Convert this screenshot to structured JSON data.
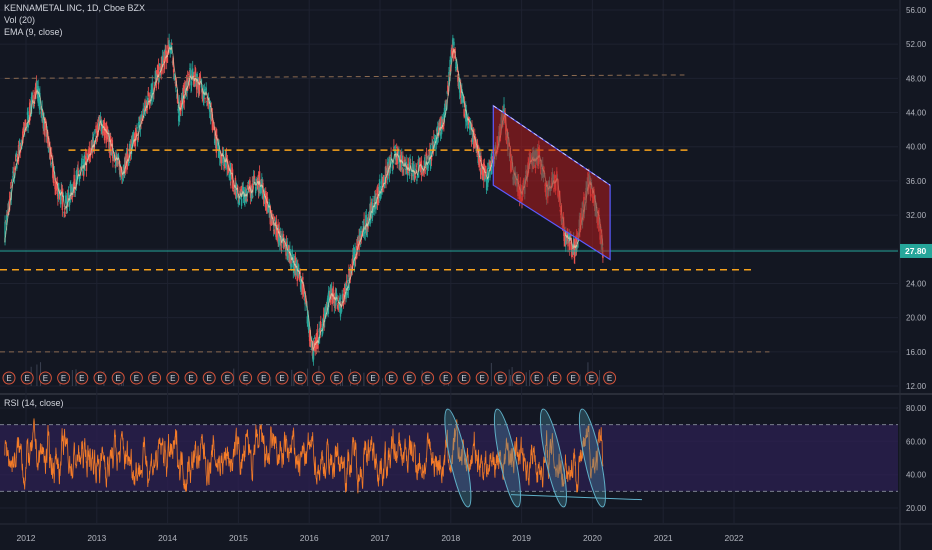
{
  "header": {
    "symbol_line": "KENNAMETAL INC, 1D, Cboe BZX",
    "vol_line": "Vol (20)",
    "ema_line": "EMA (9, close)"
  },
  "rsi_header": "RSI (14, close)",
  "colors": {
    "background": "#131722",
    "grid": "#1e2230",
    "candle_up": "#26a69a",
    "candle_down": "#ef5350",
    "ema": "#f0dcb4",
    "support": "#f7a21b",
    "channel_fill": "#b71c1c",
    "channel_edge": "#5b5bff",
    "rsi_line": "#f57c28",
    "rsi_band": "#2a1f4f",
    "price_tag": "#26a69a",
    "earnings_marker": "#d6533a"
  },
  "chart_data": [
    {
      "type": "candlestick",
      "title": "KENNAMETAL INC, 1D, Cboe BZX",
      "x_ticks": [
        "2012",
        "2013",
        "2014",
        "2015",
        "2016",
        "2017",
        "2018",
        "2019",
        "2020",
        "2021",
        "2022"
      ],
      "y_ticks": [
        "56.00",
        "52.00",
        "48.00",
        "44.00",
        "40.00",
        "36.00",
        "32.00",
        "28.00",
        "24.00",
        "20.00",
        "16.00",
        "12.00"
      ],
      "ylim": [
        12,
        57
      ],
      "last_price": "27.80",
      "price_path": [
        {
          "x": 2011.7,
          "y": 30
        },
        {
          "x": 2011.85,
          "y": 38
        },
        {
          "x": 2012.05,
          "y": 44
        },
        {
          "x": 2012.15,
          "y": 47
        },
        {
          "x": 2012.3,
          "y": 41
        },
        {
          "x": 2012.4,
          "y": 36
        },
        {
          "x": 2012.55,
          "y": 33
        },
        {
          "x": 2012.7,
          "y": 36
        },
        {
          "x": 2012.85,
          "y": 38
        },
        {
          "x": 2013.05,
          "y": 43
        },
        {
          "x": 2013.15,
          "y": 41
        },
        {
          "x": 2013.35,
          "y": 37
        },
        {
          "x": 2013.55,
          "y": 41
        },
        {
          "x": 2013.7,
          "y": 45
        },
        {
          "x": 2013.85,
          "y": 48
        },
        {
          "x": 2014.0,
          "y": 51
        },
        {
          "x": 2014.05,
          "y": 52
        },
        {
          "x": 2014.15,
          "y": 44
        },
        {
          "x": 2014.3,
          "y": 48
        },
        {
          "x": 2014.4,
          "y": 48
        },
        {
          "x": 2014.55,
          "y": 46
        },
        {
          "x": 2014.7,
          "y": 40
        },
        {
          "x": 2014.85,
          "y": 38
        },
        {
          "x": 2015.0,
          "y": 34
        },
        {
          "x": 2015.15,
          "y": 35
        },
        {
          "x": 2015.3,
          "y": 36
        },
        {
          "x": 2015.45,
          "y": 32
        },
        {
          "x": 2015.6,
          "y": 29
        },
        {
          "x": 2015.75,
          "y": 27
        },
        {
          "x": 2015.9,
          "y": 24
        },
        {
          "x": 2016.05,
          "y": 16
        },
        {
          "x": 2016.15,
          "y": 18
        },
        {
          "x": 2016.3,
          "y": 23
        },
        {
          "x": 2016.45,
          "y": 21
        },
        {
          "x": 2016.6,
          "y": 26
        },
        {
          "x": 2016.75,
          "y": 30
        },
        {
          "x": 2016.9,
          "y": 33
        },
        {
          "x": 2017.05,
          "y": 36
        },
        {
          "x": 2017.2,
          "y": 39
        },
        {
          "x": 2017.35,
          "y": 38
        },
        {
          "x": 2017.5,
          "y": 37
        },
        {
          "x": 2017.65,
          "y": 38
        },
        {
          "x": 2017.8,
          "y": 41
        },
        {
          "x": 2017.92,
          "y": 44
        },
        {
          "x": 2018.03,
          "y": 52
        },
        {
          "x": 2018.1,
          "y": 48
        },
        {
          "x": 2018.2,
          "y": 44
        },
        {
          "x": 2018.35,
          "y": 40
        },
        {
          "x": 2018.5,
          "y": 36
        },
        {
          "x": 2018.65,
          "y": 40
        },
        {
          "x": 2018.75,
          "y": 44
        },
        {
          "x": 2018.85,
          "y": 38
        },
        {
          "x": 2019.0,
          "y": 34
        },
        {
          "x": 2019.1,
          "y": 38
        },
        {
          "x": 2019.25,
          "y": 39
        },
        {
          "x": 2019.35,
          "y": 35
        },
        {
          "x": 2019.5,
          "y": 36
        },
        {
          "x": 2019.6,
          "y": 30
        },
        {
          "x": 2019.75,
          "y": 28
        },
        {
          "x": 2019.85,
          "y": 32
        },
        {
          "x": 2019.95,
          "y": 36
        },
        {
          "x": 2020.05,
          "y": 33
        },
        {
          "x": 2020.15,
          "y": 27.8
        }
      ],
      "annotations": {
        "upper_resistance_dashed": 48.4,
        "mid_support_dashed": 39.6,
        "lower_support_dashed": 25.6,
        "bottom_dashed": 16,
        "horizontal_price_line": 27.8,
        "channel": {
          "x_start": 2018.6,
          "x_end": 2020.25,
          "top_start": 44.8,
          "top_end": 35.5,
          "bottom_start": 35.5,
          "bottom_end": 26.8
        }
      },
      "earnings_markers": {
        "label": "E",
        "count": 34
      }
    },
    {
      "type": "line",
      "title": "RSI (14, close)",
      "y_ticks": [
        "80.00",
        "60.00",
        "40.00",
        "20.00"
      ],
      "ylim": [
        12,
        85
      ],
      "upper_band": 70,
      "lower_band": 30
    }
  ]
}
